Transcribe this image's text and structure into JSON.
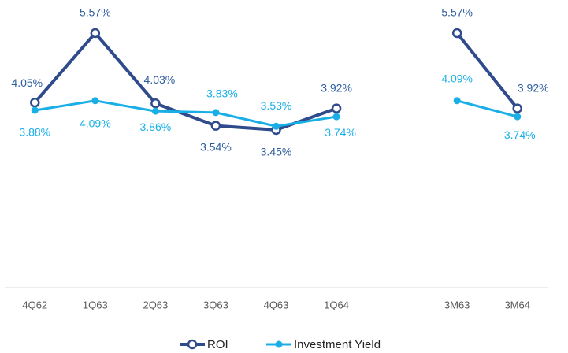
{
  "chart_data": {
    "type": "line",
    "categories": [
      "4Q62",
      "1Q63",
      "2Q63",
      "3Q63",
      "4Q63",
      "1Q64",
      null,
      "3M63",
      "3M64"
    ],
    "series": [
      {
        "name": "ROI",
        "color": "#2f4b8c",
        "label_color": "#2e5c9e",
        "values": [
          4.05,
          5.57,
          4.03,
          3.54,
          3.45,
          3.92,
          null,
          5.57,
          3.92
        ],
        "value_labels": [
          "4.05%",
          "5.57%",
          "4.03%",
          "3.54%",
          "3.45%",
          "3.92%",
          null,
          "5.57%",
          "3.92%"
        ]
      },
      {
        "name": "Investment Yield",
        "color": "#19afe6",
        "label_color": "#19afe6",
        "values": [
          3.88,
          4.09,
          3.86,
          3.83,
          3.53,
          3.74,
          null,
          4.09,
          3.74
        ],
        "value_labels": [
          "3.88%",
          "4.09%",
          "3.86%",
          "3.83%",
          "3.53%",
          "3.74%",
          null,
          "4.09%",
          "3.74%"
        ]
      }
    ],
    "ylim": [
      0,
      6
    ]
  }
}
